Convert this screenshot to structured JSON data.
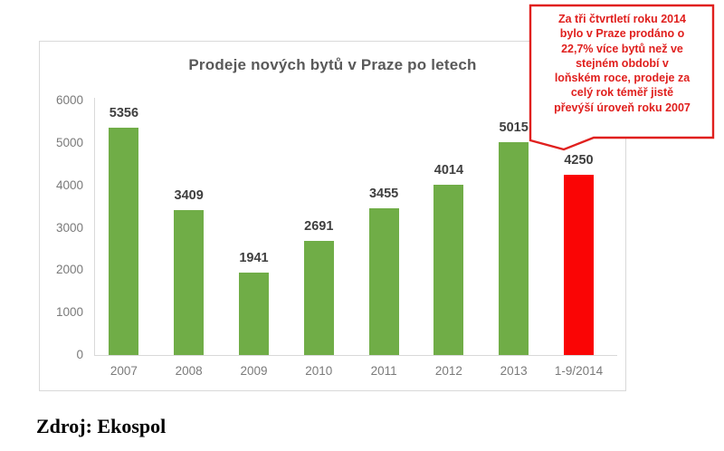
{
  "chart": {
    "title_color": "#595959",
    "border_color": "#d9d9d9",
    "axis_label_color": "#7a7a7a",
    "value_label_color": "#3f3f3f",
    "green": "#70ad47",
    "red": "#fa0505"
  },
  "chart_data": {
    "type": "bar",
    "title": "Prodeje nových bytů v Praze po letech",
    "categories": [
      "2007",
      "2008",
      "2009",
      "2010",
      "2011",
      "2012",
      "2013",
      "1-9/2014"
    ],
    "values": [
      5356,
      3409,
      1941,
      2691,
      3455,
      4014,
      5015,
      4250
    ],
    "bar_colors": [
      "#70ad47",
      "#70ad47",
      "#70ad47",
      "#70ad47",
      "#70ad47",
      "#70ad47",
      "#70ad47",
      "#fa0505"
    ],
    "xlabel": "",
    "ylabel": "",
    "ylim": [
      0,
      6000
    ],
    "yticks": [
      0,
      1000,
      2000,
      3000,
      4000,
      5000,
      6000
    ],
    "grid": false,
    "legend": false,
    "data_labels": true,
    "highlight_category": "1-9/2014"
  },
  "callout": {
    "lines": [
      "Za tři čtvrtletí roku 2014",
      "bylo v Praze prodáno o",
      "22,7% více bytů než ve",
      "stejném období v",
      "loňském roce, prodeje za",
      "celý rok téměř jistě",
      "převýší úroveň roku 2007"
    ],
    "border_color": "#e0201e",
    "text_color": "#e0201e"
  },
  "source": {
    "text": "Zdroj: Ekospol"
  }
}
